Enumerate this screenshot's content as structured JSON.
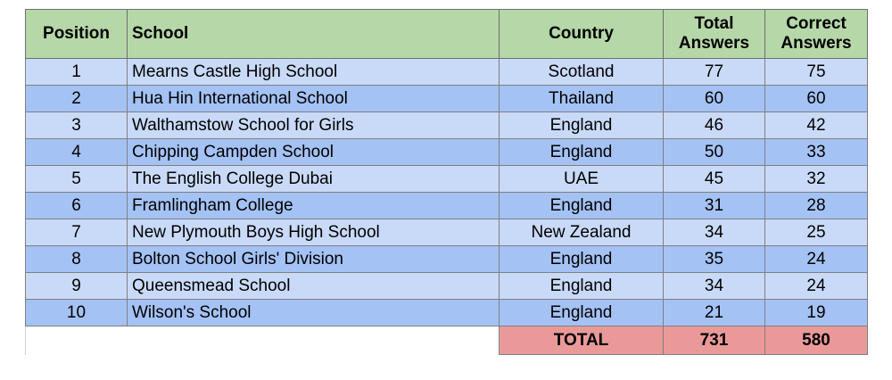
{
  "headers": {
    "position": "Position",
    "school": "School",
    "country": "Country",
    "total_answers": "Total Answers",
    "correct_answers": "Correct Answers"
  },
  "rows": [
    {
      "position": "1",
      "school": "Mearns Castle High School",
      "country": "Scotland",
      "total": "77",
      "correct": "75"
    },
    {
      "position": "2",
      "school": "Hua Hin International School",
      "country": "Thailand",
      "total": "60",
      "correct": "60"
    },
    {
      "position": "3",
      "school": "Walthamstow School for Girls",
      "country": "England",
      "total": "46",
      "correct": "42"
    },
    {
      "position": "4",
      "school": "Chipping Campden School",
      "country": "England",
      "total": "50",
      "correct": "33"
    },
    {
      "position": "5",
      "school": "The English College Dubai",
      "country": "UAE",
      "total": "45",
      "correct": "32"
    },
    {
      "position": "6",
      "school": "Framlingham College",
      "country": "England",
      "total": "31",
      "correct": "28"
    },
    {
      "position": "7",
      "school": "New Plymouth Boys High School",
      "country": "New Zealand",
      "total": "34",
      "correct": "25"
    },
    {
      "position": "8",
      "school": "Bolton School Girls' Division",
      "country": "England",
      "total": "35",
      "correct": "24"
    },
    {
      "position": "9",
      "school": "Queensmead School",
      "country": "England",
      "total": "34",
      "correct": "24"
    },
    {
      "position": "10",
      "school": "Wilson's School",
      "country": "England",
      "total": "21",
      "correct": "19"
    }
  ],
  "totals": {
    "label": "TOTAL",
    "total": "731",
    "correct": "580"
  },
  "colors": {
    "header": "#b6d7a8",
    "row_light": "#c9daf8",
    "row_dark": "#a4c2f4",
    "total": "#ea9999"
  }
}
